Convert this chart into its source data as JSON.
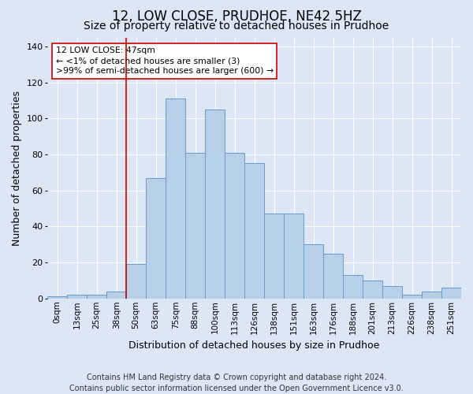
{
  "title": "12, LOW CLOSE, PRUDHOE, NE42 5HZ",
  "subtitle": "Size of property relative to detached houses in Prudhoe",
  "xlabel": "Distribution of detached houses by size in Prudhoe",
  "ylabel": "Number of detached properties",
  "bar_labels": [
    "0sqm",
    "13sqm",
    "25sqm",
    "38sqm",
    "50sqm",
    "63sqm",
    "75sqm",
    "88sqm",
    "100sqm",
    "113sqm",
    "126sqm",
    "138sqm",
    "151sqm",
    "163sqm",
    "176sqm",
    "188sqm",
    "201sqm",
    "213sqm",
    "226sqm",
    "238sqm",
    "251sqm"
  ],
  "bar_values": [
    1,
    2,
    2,
    4,
    19,
    67,
    111,
    81,
    105,
    81,
    75,
    47,
    47,
    30,
    25,
    13,
    10,
    7,
    2,
    4,
    6
  ],
  "bar_color": "#b8cfe8",
  "bar_edgecolor": "#6699cc",
  "background_color": "#dce6f5",
  "grid_color": "#ffffff",
  "vline_x": 3.5,
  "vline_color": "#cc0000",
  "annotation_text": "12 LOW CLOSE: 47sqm\n← <1% of detached houses are smaller (3)\n>99% of semi-detached houses are larger (600) →",
  "annotation_box_color": "#ffffff",
  "annotation_box_edgecolor": "#cc0000",
  "ylim": [
    0,
    145
  ],
  "yticks": [
    0,
    20,
    40,
    60,
    80,
    100,
    120,
    140
  ],
  "footer": "Contains HM Land Registry data © Crown copyright and database right 2024.\nContains public sector information licensed under the Open Government Licence v3.0.",
  "title_fontsize": 12,
  "subtitle_fontsize": 10,
  "xlabel_fontsize": 9,
  "ylabel_fontsize": 9,
  "tick_fontsize": 7.5,
  "footer_fontsize": 7
}
